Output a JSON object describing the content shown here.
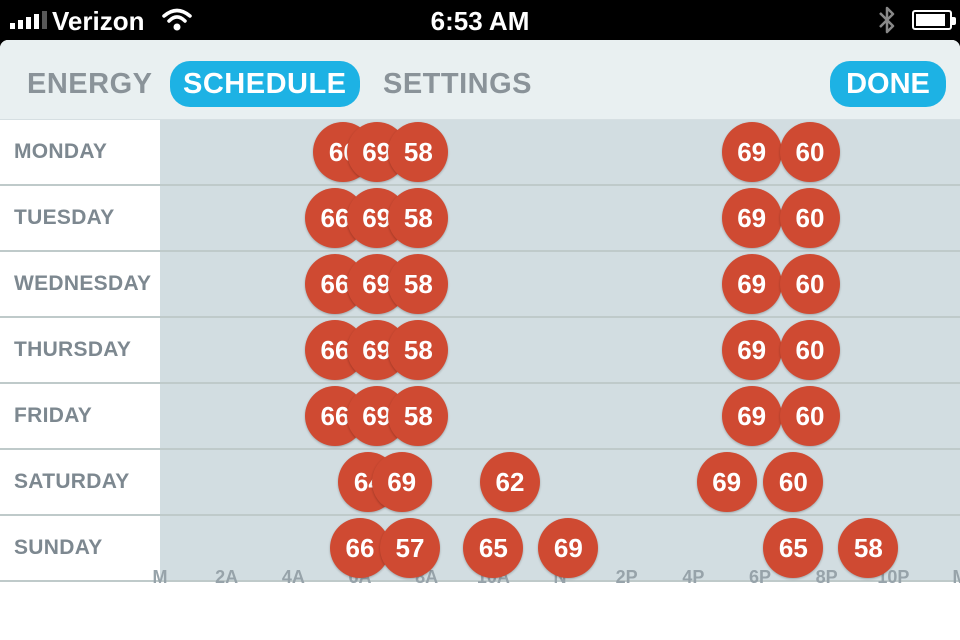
{
  "status_bar": {
    "carrier": "Verizon",
    "time": "6:53 AM",
    "signal_icon": "signal-bars-icon",
    "wifi_icon": "wifi-icon",
    "bluetooth_icon": "bluetooth-icon",
    "battery_icon": "battery-icon",
    "battery_level": 0.9
  },
  "nav": {
    "tabs": [
      {
        "label": "ENERGY",
        "active": false
      },
      {
        "label": "SCHEDULE",
        "active": true
      },
      {
        "label": "SETTINGS",
        "active": false
      }
    ],
    "done_label": "DONE"
  },
  "colors": {
    "accent": "#1db2e4",
    "setpoint": "#cf4a32",
    "track": "#d2dde1",
    "label": "#7d8890"
  },
  "axis_ticks": [
    "M",
    "2A",
    "4A",
    "6A",
    "8A",
    "10A",
    "N",
    "2P",
    "4P",
    "6P",
    "8P",
    "10P",
    "M"
  ],
  "days": [
    {
      "name": "MONDAY",
      "setpoints": [
        {
          "hour": 5.5,
          "temp": "66"
        },
        {
          "hour": 6.5,
          "temp": "69"
        },
        {
          "hour": 7.75,
          "temp": "58"
        },
        {
          "hour": 17.75,
          "temp": "69"
        },
        {
          "hour": 19.5,
          "temp": "60"
        }
      ]
    },
    {
      "name": "TUESDAY",
      "setpoints": [
        {
          "hour": 5.25,
          "temp": "66"
        },
        {
          "hour": 6.5,
          "temp": "69"
        },
        {
          "hour": 7.75,
          "temp": "58"
        },
        {
          "hour": 17.75,
          "temp": "69"
        },
        {
          "hour": 19.5,
          "temp": "60"
        }
      ]
    },
    {
      "name": "WEDNESDAY",
      "setpoints": [
        {
          "hour": 5.25,
          "temp": "66"
        },
        {
          "hour": 6.5,
          "temp": "69"
        },
        {
          "hour": 7.75,
          "temp": "58"
        },
        {
          "hour": 17.75,
          "temp": "69"
        },
        {
          "hour": 19.5,
          "temp": "60"
        }
      ]
    },
    {
      "name": "THURSDAY",
      "setpoints": [
        {
          "hour": 5.25,
          "temp": "66"
        },
        {
          "hour": 6.5,
          "temp": "69"
        },
        {
          "hour": 7.75,
          "temp": "58"
        },
        {
          "hour": 17.75,
          "temp": "69"
        },
        {
          "hour": 19.5,
          "temp": "60"
        }
      ]
    },
    {
      "name": "FRIDAY",
      "setpoints": [
        {
          "hour": 5.25,
          "temp": "66"
        },
        {
          "hour": 6.5,
          "temp": "69"
        },
        {
          "hour": 7.75,
          "temp": "58"
        },
        {
          "hour": 17.75,
          "temp": "69"
        },
        {
          "hour": 19.5,
          "temp": "60"
        }
      ]
    },
    {
      "name": "SATURDAY",
      "setpoints": [
        {
          "hour": 6.25,
          "temp": "64"
        },
        {
          "hour": 7.25,
          "temp": "69"
        },
        {
          "hour": 10.5,
          "temp": "62"
        },
        {
          "hour": 17.0,
          "temp": "69"
        },
        {
          "hour": 19.0,
          "temp": "60"
        }
      ]
    },
    {
      "name": "SUNDAY",
      "setpoints": [
        {
          "hour": 6.0,
          "temp": "66"
        },
        {
          "hour": 7.5,
          "temp": "57"
        },
        {
          "hour": 10.0,
          "temp": "65"
        },
        {
          "hour": 12.25,
          "temp": "69"
        },
        {
          "hour": 19.0,
          "temp": "65"
        },
        {
          "hour": 21.25,
          "temp": "58"
        }
      ]
    }
  ]
}
